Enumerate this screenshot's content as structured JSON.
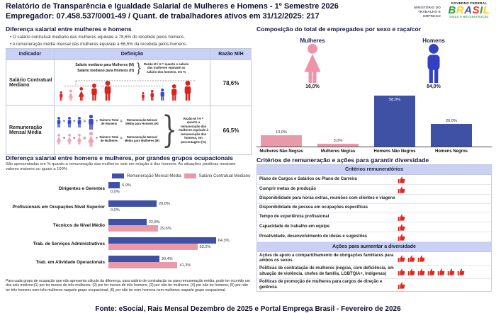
{
  "header": {
    "title_line1": "Relatório de Transparência e Igualdade Salarial de Mulheres e Homens - 1º Semestre 2026",
    "title_line2": "Empregador: 07.458.537/0001-49 / Quant. de trabalhadores ativos em 31/12/2025: 217",
    "ministry": "MINISTÉRIO DO TRABALHO E EMPREGO",
    "gov_top": "GOVERNO FEDERAL",
    "gov_brand": "BRASIL",
    "gov_sub": "UNIÃO E RECONSTRUÇÃO",
    "brand_colors": [
      "#2f9e41",
      "#ffcc29",
      "#355ca8",
      "#e23c2e",
      "#2f9e41",
      "#ffcc29"
    ]
  },
  "symbols": {
    "plus": "+",
    "equals": "=",
    "divide": "÷",
    "brace": "}"
  },
  "salary_diff": {
    "title": "Diferença salarial entre mulheres e homens",
    "bullets": [
      "O salário contratual mediano das mulheres equivale a 78,6% do recebido pelos homens.",
      "A remuneração média mensal das mulheres equivale a 66,5% da recebida pelos homens."
    ],
    "table": {
      "headers": [
        "Indicador",
        "Definição",
        "Razão M/H"
      ],
      "row1": {
        "indicator": "Salário Contratual Mediano",
        "def_line1": "Salário mediano para Mulheres (M)",
        "def_line2": "Salário mediano para Homens (H)",
        "def_note": "Razão M / H = quanto o salário das mulheres equivale ao salário dos homens, em %",
        "ratio": "78,6%"
      },
      "row2": {
        "indicator": "Remuneração Mensal Média",
        "men_count": "Número Total de Homens",
        "men_result": "Remuneração Mensal Média para Homens (H)",
        "women_count": "Número Total de Mulheres",
        "women_result": "Remuneração Mensal Média para Mulheres (M)",
        "def_note": "Razão M / H = quanto a remuneração das mulheres equivale à remuneração dos homens, em porcentagem (%)",
        "ratio": "66,5%"
      }
    }
  },
  "occupational": {
    "title": "Diferença salarial entre homens e mulheres, por grandes grupos ocupacionais",
    "subtitle": "São apresentadas em % quanto a remuneração das mulheres vale em relação à dos homens. As situações positivas mostram valores maiores ou iguais a 100%",
    "legend": [
      {
        "label": "Remuneração Mensal Média",
        "color": "#3f51a5"
      },
      {
        "label": "Salário Contratual Mediano",
        "color": "#e899aa"
      }
    ],
    "groups": [
      {
        "label": "Dirigentes e Gerentes",
        "mensal": 6.9,
        "mensal_label": "6,9%",
        "mediano": 0,
        "mediano_label": "0,0%"
      },
      {
        "label": "Profissionais em Ocupações Nível Superior",
        "mensal": 28.8,
        "mensal_label": "28,8%",
        "mediano": 0,
        "mediano_label": "0,0%"
      },
      {
        "label": "Técnicos de Nível Médio",
        "mensal": 22.8,
        "mensal_label": "22,8%",
        "mediano": 29.6,
        "mediano_label": "29,6%"
      },
      {
        "label": "Trab. de Serviços Administrativos",
        "mensal": 64.3,
        "mensal_label": "64,3%",
        "mediano": 53.2,
        "mediano_label": "53,2%"
      },
      {
        "label": "Trab. em Atividade Operacionais",
        "mensal": 30.4,
        "mensal_label": "30,4%",
        "mediano": 41.3,
        "mediano_label": "41,3%"
      }
    ],
    "footnote": "Para cada grupo de ocupação que não apresenta cálculo da diferença, para salário de contratação ou para remuneração média, pode ter ocorrido um dos seis motivos:(1) por ter menos de três mulheres; (2) por ter menos de três homens; (3) por não ter mulheres; (4) por não ter homens; (5) por não ter três homens nem três mulheres naquele grupo ocupacional; (6) por não ter nem homens nem mulheres naquele grupo ocupacional."
  },
  "composition": {
    "title": "Composição do total de empregados por sexo e raça/cor",
    "women_label": "Mulheres",
    "women_pct": "16,0%",
    "men_label": "Homens",
    "men_pct": "84,0%",
    "women_color": "#ef93a8",
    "men_color": "#3340c4",
    "bars": [
      {
        "label": "Mulheres Não Negras",
        "value": 13,
        "value_label": "13,0%",
        "color": "#e899aa"
      },
      {
        "label": "Mulheres Negras",
        "value": 3,
        "value_label": "3,0%",
        "color": "#e899aa"
      },
      {
        "label": "Homens Não Negros",
        "value": 58,
        "value_label": "58,0%",
        "color": "#3f51a5"
      },
      {
        "label": "Homens Negros",
        "value": 26,
        "value_label": "26,0%",
        "color": "#3f51a5"
      }
    ]
  },
  "criteria": {
    "title": "Critérios de remuneração e ações para garantir diversidade",
    "section1_header": "Critérios remuneratórios",
    "section1_rows": [
      {
        "label": "Plano de Cargos e Salários ou Plano de Carreira",
        "count": 1
      },
      {
        "label": "Cumprir metas de produção",
        "count": 1
      },
      {
        "label": "Disponibilidade para horas extras, reuniões com clientes e viagens",
        "count": 0
      },
      {
        "label": "Disponibilidade de pessoa em ocupações específicas",
        "count": 0
      },
      {
        "label": "Tempo de experiência profissional",
        "count": 1
      },
      {
        "label": "Capacidade de trabalho em equipe",
        "count": 1
      },
      {
        "label": "Proatividade, desenvolvimento de ideias e sugestões",
        "count": 1
      }
    ],
    "section2_header": "Ações para aumentar a diversidade",
    "section2_rows": [
      {
        "label": "Ações de apoio a compartilhamento de obrigações familiares para ambos os sexos",
        "count": 3
      },
      {
        "label": "Políticas de contratação de mulheres (negras, com deficiência, em situação de violência, chefes de família, LGBTQIA+, Indígenas)",
        "count": 7
      },
      {
        "label": "Políticas de promoção de mulheres para cargos de direção e gerência",
        "count": 1
      }
    ]
  },
  "footer": {
    "source": "Fonte: eSocial, Rais Mensal Dezembro de 2025 e Portal Emprega Brasil - Fevereiro de 2026"
  },
  "chart_data": [
    {
      "type": "bar",
      "title": "Composição do total de empregados por sexo e raça/cor",
      "categories": [
        "Mulheres Não Negras",
        "Mulheres Negras",
        "Homens Não Negros",
        "Homens Negros"
      ],
      "values": [
        13.0,
        3.0,
        58.0,
        26.0
      ],
      "xlabel": "",
      "ylabel": "%",
      "ylim": [
        0,
        60
      ],
      "grid": false,
      "annotations": {
        "Mulheres": 16.0,
        "Homens": 84.0
      }
    },
    {
      "type": "bar",
      "title": "Diferença salarial entre homens e mulheres, por grandes grupos ocupacionais",
      "orientation": "horizontal",
      "categories": [
        "Dirigentes e Gerentes",
        "Profissionais em Ocupações Nível Superior",
        "Técnicos de Nível Médio",
        "Trab. de Serviços Administrativos",
        "Trab. em Atividade Operacionais"
      ],
      "series": [
        {
          "name": "Remuneração Mensal Média",
          "values": [
            6.9,
            28.8,
            22.8,
            64.3,
            30.4
          ]
        },
        {
          "name": "Salário Contratual Mediano",
          "values": [
            0.0,
            0.0,
            29.6,
            53.2,
            41.3
          ]
        }
      ],
      "xlim": [
        0,
        100
      ],
      "legend_position": "top",
      "grid": false
    }
  ]
}
